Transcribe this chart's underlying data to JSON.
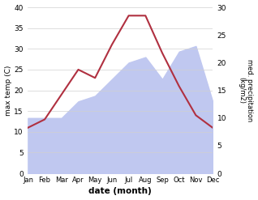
{
  "months": [
    "Jan",
    "Feb",
    "Mar",
    "Apr",
    "May",
    "Jun",
    "Jul",
    "Aug",
    "Sep",
    "Oct",
    "Nov",
    "Dec"
  ],
  "temp": [
    11,
    13,
    19,
    25,
    23,
    31,
    38,
    38,
    29,
    21,
    14,
    11
  ],
  "precip": [
    10,
    10,
    10,
    13,
    14,
    17,
    20,
    21,
    17,
    22,
    23,
    13
  ],
  "temp_color": "#b03040",
  "precip_fill_color": "#c0c8f0",
  "temp_ylim": [
    0,
    40
  ],
  "precip_ylim": [
    0,
    30
  ],
  "xlabel": "date (month)",
  "ylabel_left": "max temp (C)",
  "ylabel_right": "med. precipitation\n(kg/m2)",
  "plot_bg_color": "#ffffff"
}
